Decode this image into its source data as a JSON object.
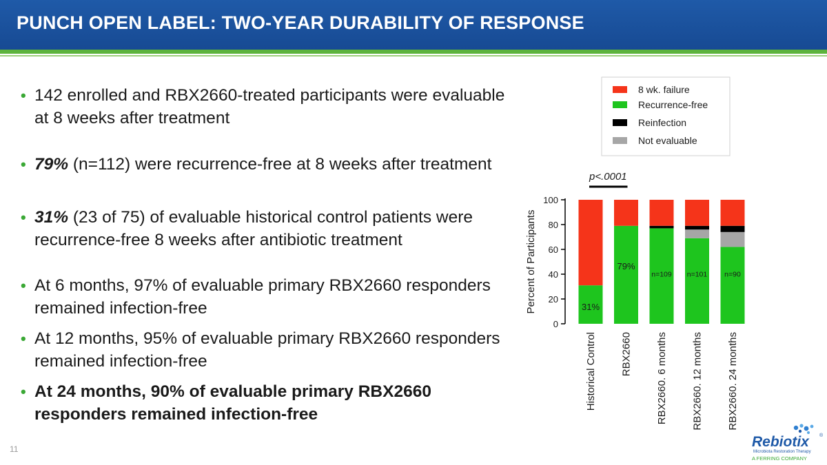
{
  "slide": {
    "title": "PUNCH OPEN LABEL: TWO-YEAR DURABILITY OF RESPONSE",
    "page_number": "11"
  },
  "bullets": [
    {
      "lead": "",
      "text": "142 enrolled and RBX2660-treated participants were evaluable at 8 weeks after treatment",
      "style": "normal"
    },
    {
      "lead": "79%",
      "text": " (n=112) were recurrence-free at 8 weeks after treatment",
      "style": "normal"
    },
    {
      "lead": "31%",
      "text": " (23 of 75) of evaluable historical control patients were recurrence-free 8 weeks after antibiotic treatment",
      "style": "normal"
    },
    {
      "lead": "",
      "text": "At 6 months, 97% of evaluable primary RBX2660 responders remained infection-free",
      "style": "normal"
    },
    {
      "lead": "",
      "text": "At 12 months, 95% of evaluable primary RBX2660 responders remained infection-free",
      "style": "normal"
    },
    {
      "lead": "",
      "text": "At 24 months, 90% of evaluable primary RBX2660 responders remained infection-free",
      "style": "bold"
    }
  ],
  "logo": {
    "name": "Rebiotix",
    "tagline": "Microbiota Restoration Therapy",
    "company": "A FERRING COMPANY"
  },
  "colors": {
    "header_blue": "#1f5aa8",
    "accent_green": "#5db33c",
    "failure_red": "#f5341a",
    "recurrence_green": "#1ec51e",
    "reinfection_black": "#000000",
    "not_evaluable_gray": "#a6a6a6"
  },
  "chart_data": {
    "type": "bar",
    "stacked": true,
    "categories": [
      "Historical Control",
      "RBX2660",
      "RBX2660. 6 months",
      "RBX2660. 12 months",
      "RBX2660. 24 months"
    ],
    "series": [
      {
        "name": "Recurrence-free",
        "color": "#1ec51e",
        "values": [
          31,
          79,
          77,
          69,
          62
        ]
      },
      {
        "name": "Not evaluable",
        "color": "#a6a6a6",
        "values": [
          0,
          0,
          0,
          7,
          12
        ]
      },
      {
        "name": "Reinfection",
        "color": "#000000",
        "values": [
          0,
          0,
          2,
          3,
          5
        ]
      },
      {
        "name": "8 wk. failure",
        "color": "#f5341a",
        "values": [
          69,
          21,
          21,
          21,
          21
        ]
      }
    ],
    "legend_order": [
      "8 wk. failure",
      "Recurrence-free",
      "Reinfection",
      "Not evaluable"
    ],
    "bar_labels": [
      "31%",
      "79%",
      "n=109",
      "n=101",
      "n=90"
    ],
    "annotation": "p<.0001",
    "ylabel": "Percent of Participants",
    "ylim": [
      0,
      100
    ],
    "yticks": [
      0,
      20,
      40,
      60,
      80,
      100
    ],
    "legend_position": "top"
  }
}
